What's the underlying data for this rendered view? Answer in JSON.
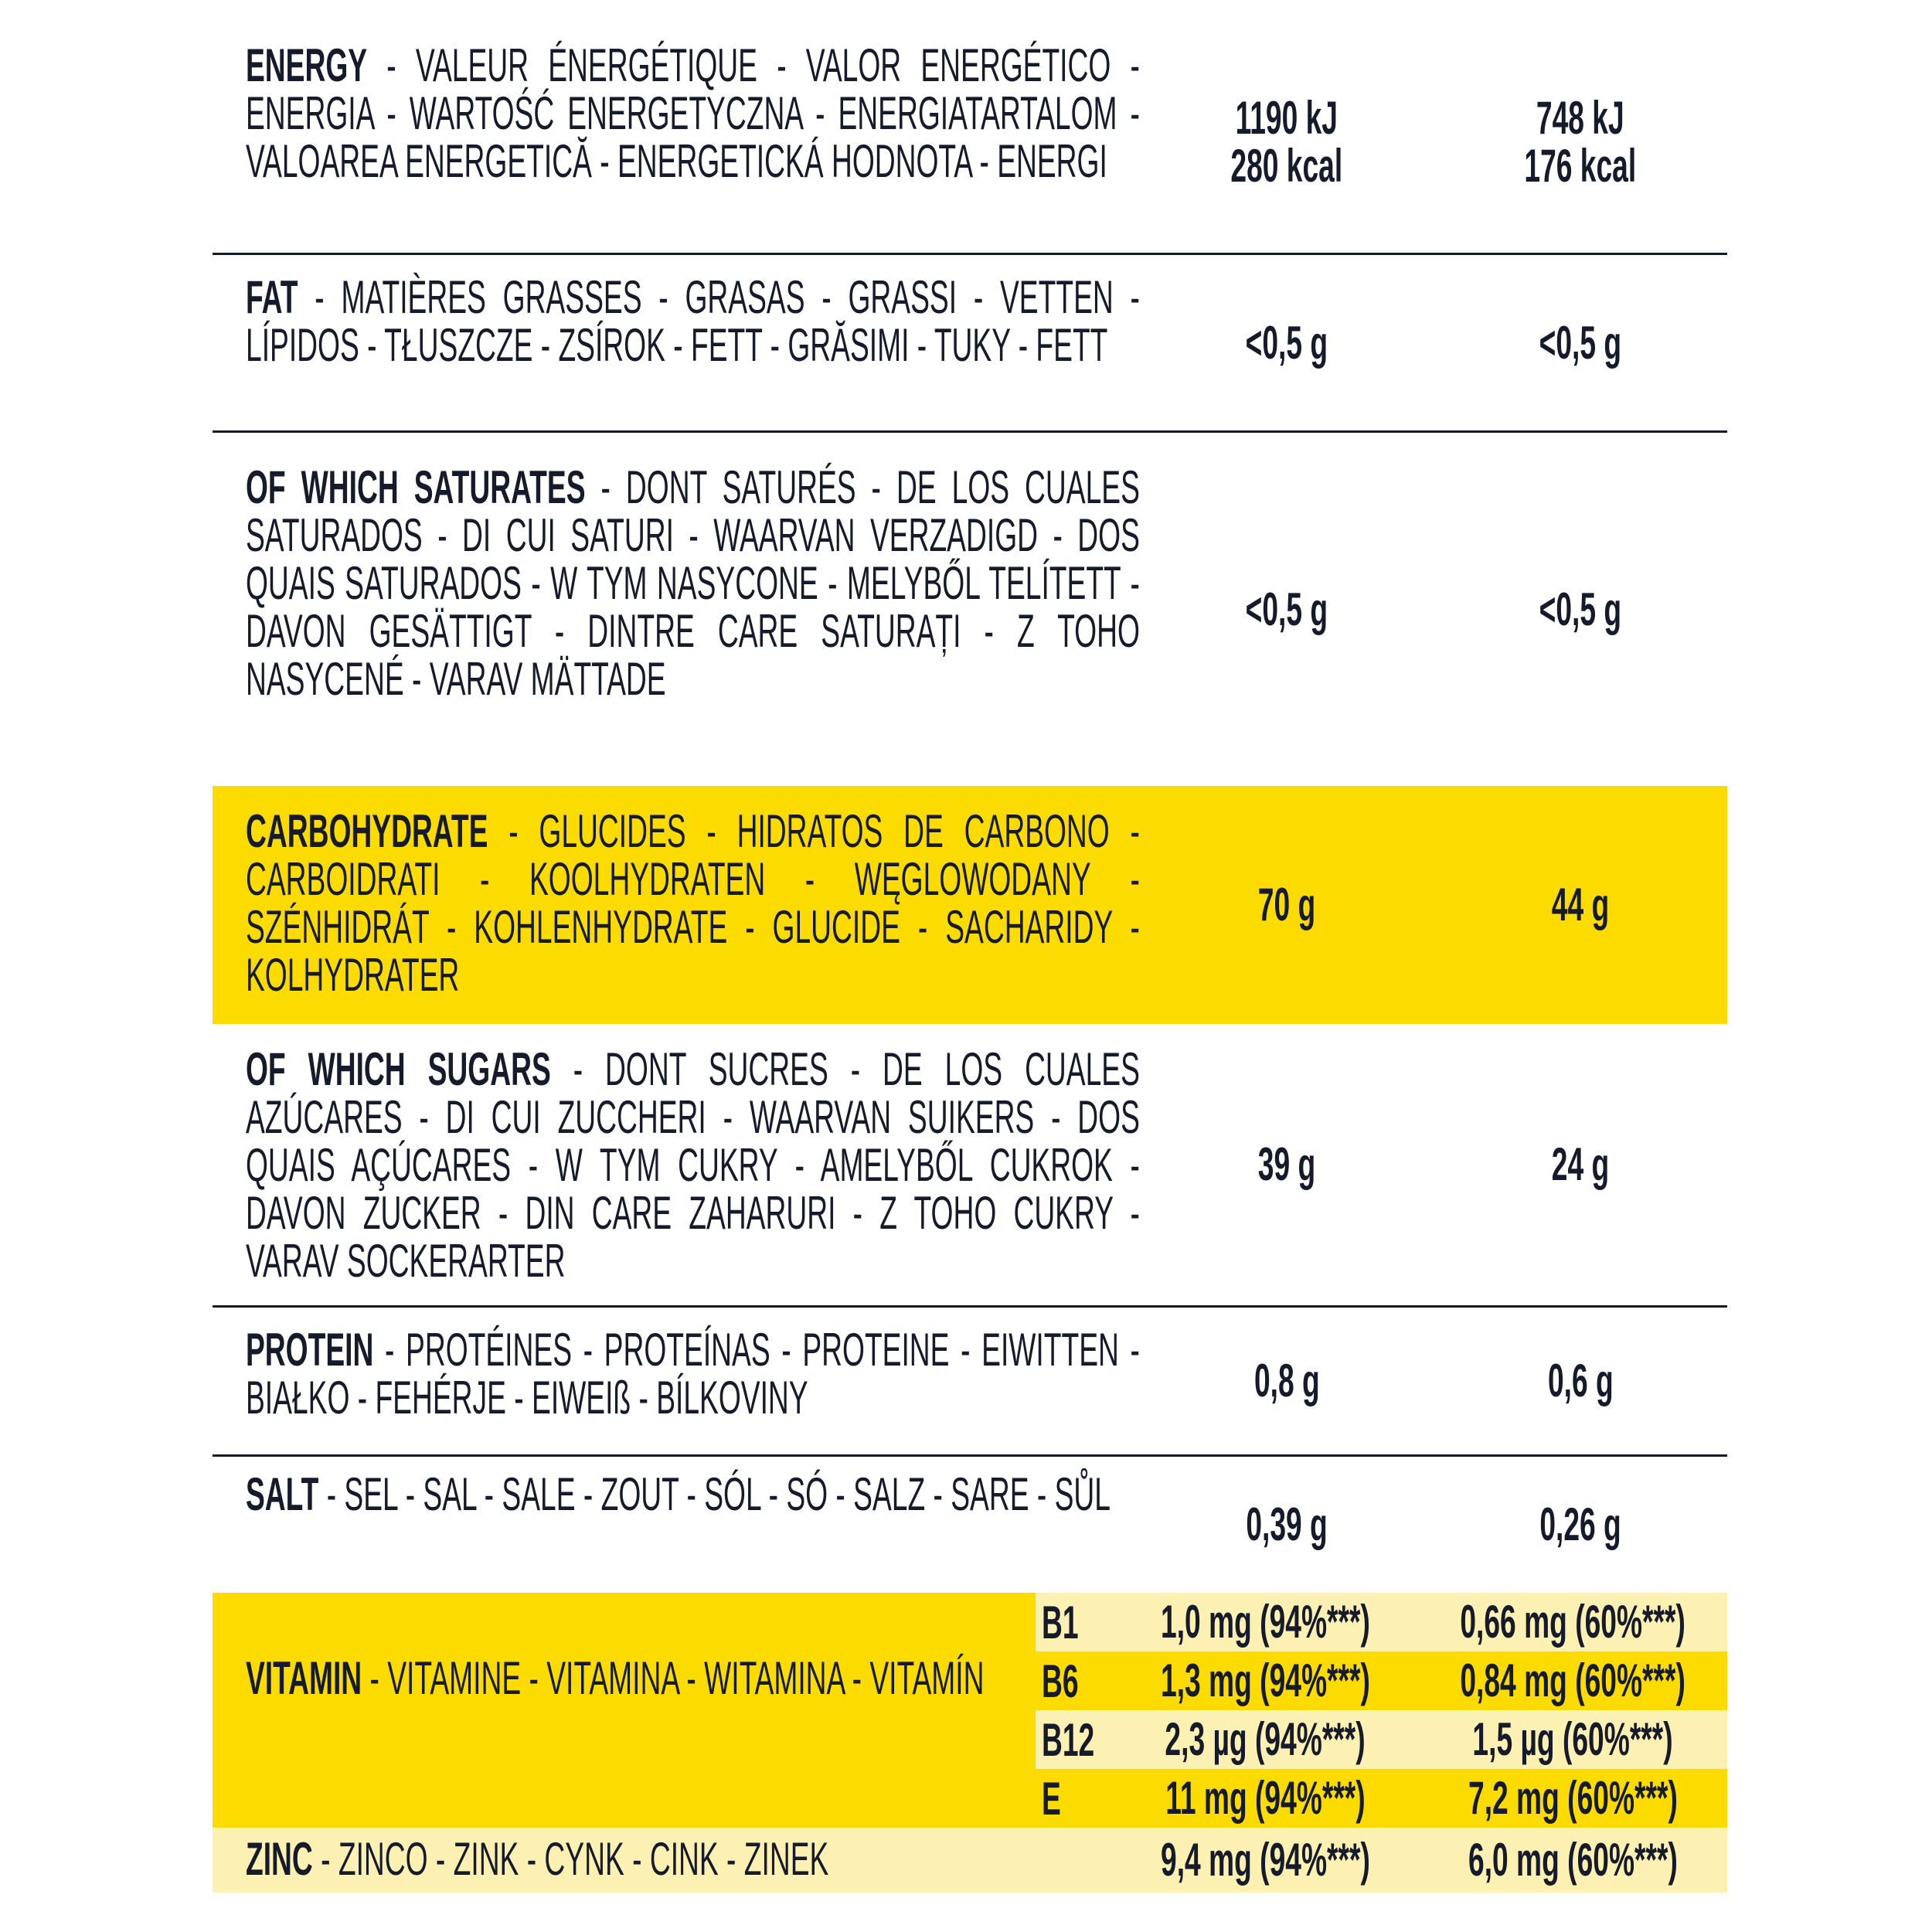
{
  "rows": [
    {
      "name": "ENERGY",
      "rest": " - VALEUR ÉNERGÉTIQUE - VALOR ENERGÉTICO - ENERGIA - WARTOŚĆ ENERGETYCZNA - ENERGIATARTALOM - VALOAREA ENERGETICĂ - ENERGETICKÁ HODNOTA - ENERGI",
      "v1": "1190 kJ\n280 kcal",
      "v2": "748 kJ\n176 kcal"
    },
    {
      "name": "FAT",
      "rest": " - MATIÈRES GRASSES - GRASAS - GRASSI - VETTEN - LÍPIDOS - TŁUSZCZE - ZSÍROK - FETT - GRĂSIMI - TUKY - FETT",
      "v1": "<0,5 g",
      "v2": "<0,5 g"
    },
    {
      "name": "OF WHICH SATURATES",
      "rest": " - DONT SATURÉS - DE LOS CUALES SATURADOS - DI CUI SATURI - WAARVAN VERZADIGD - DOS QUAIS SATURADOS - W TYM NASYCONE - MELYBŐL TELÍTETT - DAVON GESÄTTIGT - DINTRE CARE SATURAȚI - Z TOHO NASYCENÉ - VARAV MÄTTADE",
      "v1": "<0,5 g",
      "v2": "<0,5 g"
    },
    {
      "name": "CARBOHYDRATE",
      "rest": " - GLUCIDES - HIDRATOS DE CARBONO - CARBOIDRATI - KOOLHYDRATEN - WĘGLOWODANY - SZÉNHIDRÁT - KOHLENHYDRATE - GLUCIDE - SACHARIDY - KOLHYDRATER",
      "v1": "70 g",
      "v2": "44 g"
    },
    {
      "name": "OF WHICH SUGARS",
      "rest": " - DONT SUCRES - DE LOS CUALES AZÚCARES - DI CUI ZUCCHERI - WAARVAN SUIKERS - DOS QUAIS AÇÚCARES - W TYM CUKRY - AMELYBŐL CUKROK - DAVON ZUCKER - DIN CARE ZAHARURI - Z TOHO CUKRY - VARAV SOCKERARTER",
      "v1": "39 g",
      "v2": "24 g"
    },
    {
      "name": "PROTEIN",
      "rest": " - PROTÉINES - PROTEÍNAS - PROTEINE - EIWITTEN - BIAŁKO - FEHÉRJE - EIWEIß - BÍLKOVINY",
      "v1": "0,8 g",
      "v2": "0,6 g"
    },
    {
      "name": "SALT",
      "rest": " - SEL - SAL - SALE - ZOUT - SÓL - SÓ - SALZ - SARE - SŮL",
      "v1": "0,39 g",
      "v2": "0,26 g"
    }
  ],
  "vitamin": {
    "name": "VITAMIN",
    "rest": " - VITAMINE - VITAMINA - WITAMINA - VITAMÍN",
    "items": [
      {
        "k": "B1",
        "v1": "1,0 mg (94%***)",
        "v2": "0,66 mg (60%***)"
      },
      {
        "k": "B6",
        "v1": "1,3 mg (94%***)",
        "v2": "0,84 mg (60%***)"
      },
      {
        "k": "B12",
        "v1": "2,3 µg (94%***)",
        "v2": "1,5 µg (60%***)"
      },
      {
        "k": "E",
        "v1": "11 mg (94%***)",
        "v2": "7,2 mg (60%***)"
      }
    ]
  },
  "zinc": {
    "name": "ZINC",
    "rest": " - ZINCO - ZINK - CYNK - CINK - ZINEK",
    "v1": "9,4 mg (94%***)",
    "v2": "6,0 mg (60%***)"
  },
  "colors": {
    "yellow": "#fcdc00",
    "light": "#fdf0b3",
    "text": "#161b2b"
  }
}
